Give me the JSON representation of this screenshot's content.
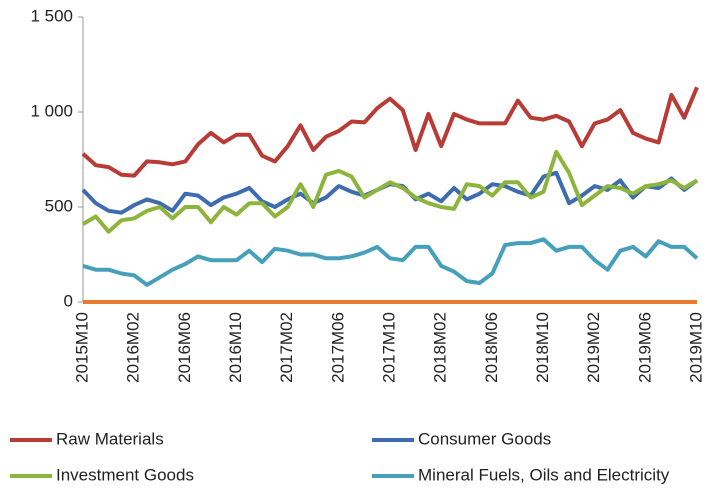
{
  "chart_data": {
    "type": "line",
    "categories": [
      "2015M10",
      null,
      null,
      null,
      "2016M02",
      null,
      null,
      null,
      "2016M06",
      null,
      null,
      null,
      "2016M10",
      null,
      null,
      null,
      "2017M02",
      null,
      null,
      null,
      "2017M06",
      null,
      null,
      null,
      "2017M10",
      null,
      null,
      null,
      "2018M02",
      null,
      null,
      null,
      "2018M06",
      null,
      null,
      null,
      "2018M10",
      null,
      null,
      null,
      "2019M02",
      null,
      null,
      null,
      "2019M06",
      null,
      null,
      null,
      "2019M10"
    ],
    "ylim": [
      0,
      1500
    ],
    "yticks": [
      0,
      500,
      {
        "value": 1000,
        "label": "1 000"
      },
      {
        "value": 1500,
        "label": "1 500"
      }
    ],
    "series": [
      {
        "name": "Raw Materials",
        "color": "#b83c35",
        "values": [
          780,
          720,
          710,
          670,
          665,
          740,
          735,
          725,
          740,
          830,
          890,
          840,
          880,
          880,
          770,
          740,
          820,
          930,
          800,
          870,
          900,
          950,
          945,
          1020,
          1070,
          1010,
          800,
          990,
          820,
          990,
          960,
          940,
          940,
          940,
          1060,
          970,
          960,
          980,
          950,
          820,
          940,
          960,
          1010,
          890,
          860,
          840,
          1090,
          970,
          1130
        ]
      },
      {
        "name": "Consumer Goods",
        "color": "#3d6cb0",
        "values": [
          590,
          520,
          480,
          470,
          510,
          540,
          520,
          480,
          570,
          560,
          510,
          550,
          570,
          600,
          530,
          500,
          540,
          570,
          520,
          550,
          610,
          580,
          560,
          590,
          620,
          610,
          540,
          570,
          530,
          600,
          540,
          570,
          620,
          610,
          580,
          560,
          660,
          680,
          520,
          560,
          610,
          590,
          640,
          550,
          610,
          600,
          650,
          590,
          640
        ]
      },
      {
        "name": "Investment Goods",
        "color": "#8db53c",
        "values": [
          410,
          450,
          370,
          430,
          440,
          480,
          500,
          440,
          500,
          500,
          420,
          500,
          460,
          520,
          520,
          450,
          500,
          620,
          500,
          670,
          690,
          660,
          550,
          590,
          630,
          600,
          550,
          520,
          500,
          490,
          620,
          610,
          560,
          630,
          630,
          550,
          580,
          790,
          680,
          510,
          560,
          610,
          600,
          570,
          610,
          620,
          640,
          600,
          640
        ]
      },
      {
        "name": "Mineral Fuels, Oils and Electricity",
        "color": "#46a0bb",
        "values": [
          190,
          170,
          170,
          150,
          140,
          90,
          130,
          170,
          200,
          240,
          220,
          220,
          220,
          270,
          210,
          280,
          270,
          250,
          250,
          230,
          230,
          240,
          260,
          290,
          230,
          220,
          290,
          290,
          190,
          160,
          110,
          100,
          150,
          300,
          310,
          310,
          330,
          270,
          290,
          290,
          220,
          170,
          270,
          290,
          240,
          320,
          290,
          290,
          230
        ]
      }
    ]
  }
}
